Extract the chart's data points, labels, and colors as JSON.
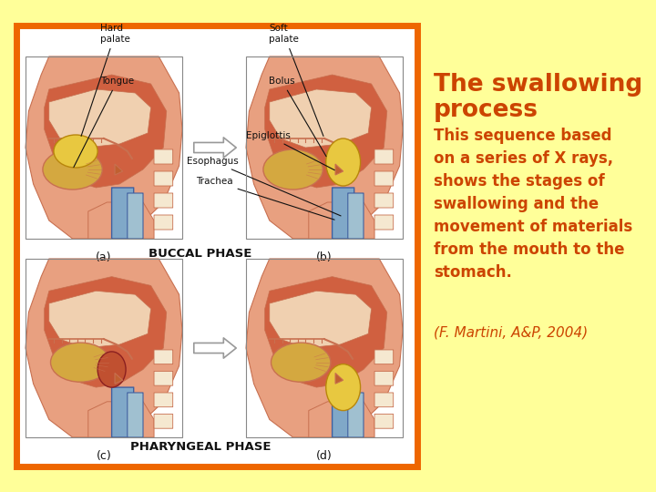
{
  "background_color": "#FFFF99",
  "title_line1": "The swallowing",
  "title_line2": "process",
  "title_color": "#CC4400",
  "title_fontsize": 19,
  "body_text": "This sequence based\non a series of X rays,\nshows the stages of\nswallowing and the\nmovement of materials\nfrom the mouth to the\nstomach.",
  "body_color": "#CC4400",
  "body_fontsize": 12,
  "citation_text": "(F. Martini, A&P, 2004)",
  "citation_color": "#CC4400",
  "citation_fontsize": 11,
  "border_color": "#EE6600",
  "border_linewidth": 5,
  "inner_bg": "#FFFFFF",
  "panel_labels": [
    "(a)",
    "(b)",
    "(c)",
    "(d)"
  ],
  "buccal_label": "BUCCAL PHASE",
  "pharyngeal_label": "PHARYNGEAL PHASE",
  "label_fontsize": 9,
  "annot_fontsize": 7.5,
  "skin_color": "#E8A080",
  "skin_dark": "#C87050",
  "muscle_color": "#D06040",
  "nasal_color": "#F0D0B0",
  "bolus_color": "#E8C840",
  "blue_color": "#80A8C8",
  "yellow_tissue": "#D4A840",
  "white_tissue": "#F5E8D0",
  "arrow_color": "#CCCCCC",
  "arrow_edge": "#888888"
}
